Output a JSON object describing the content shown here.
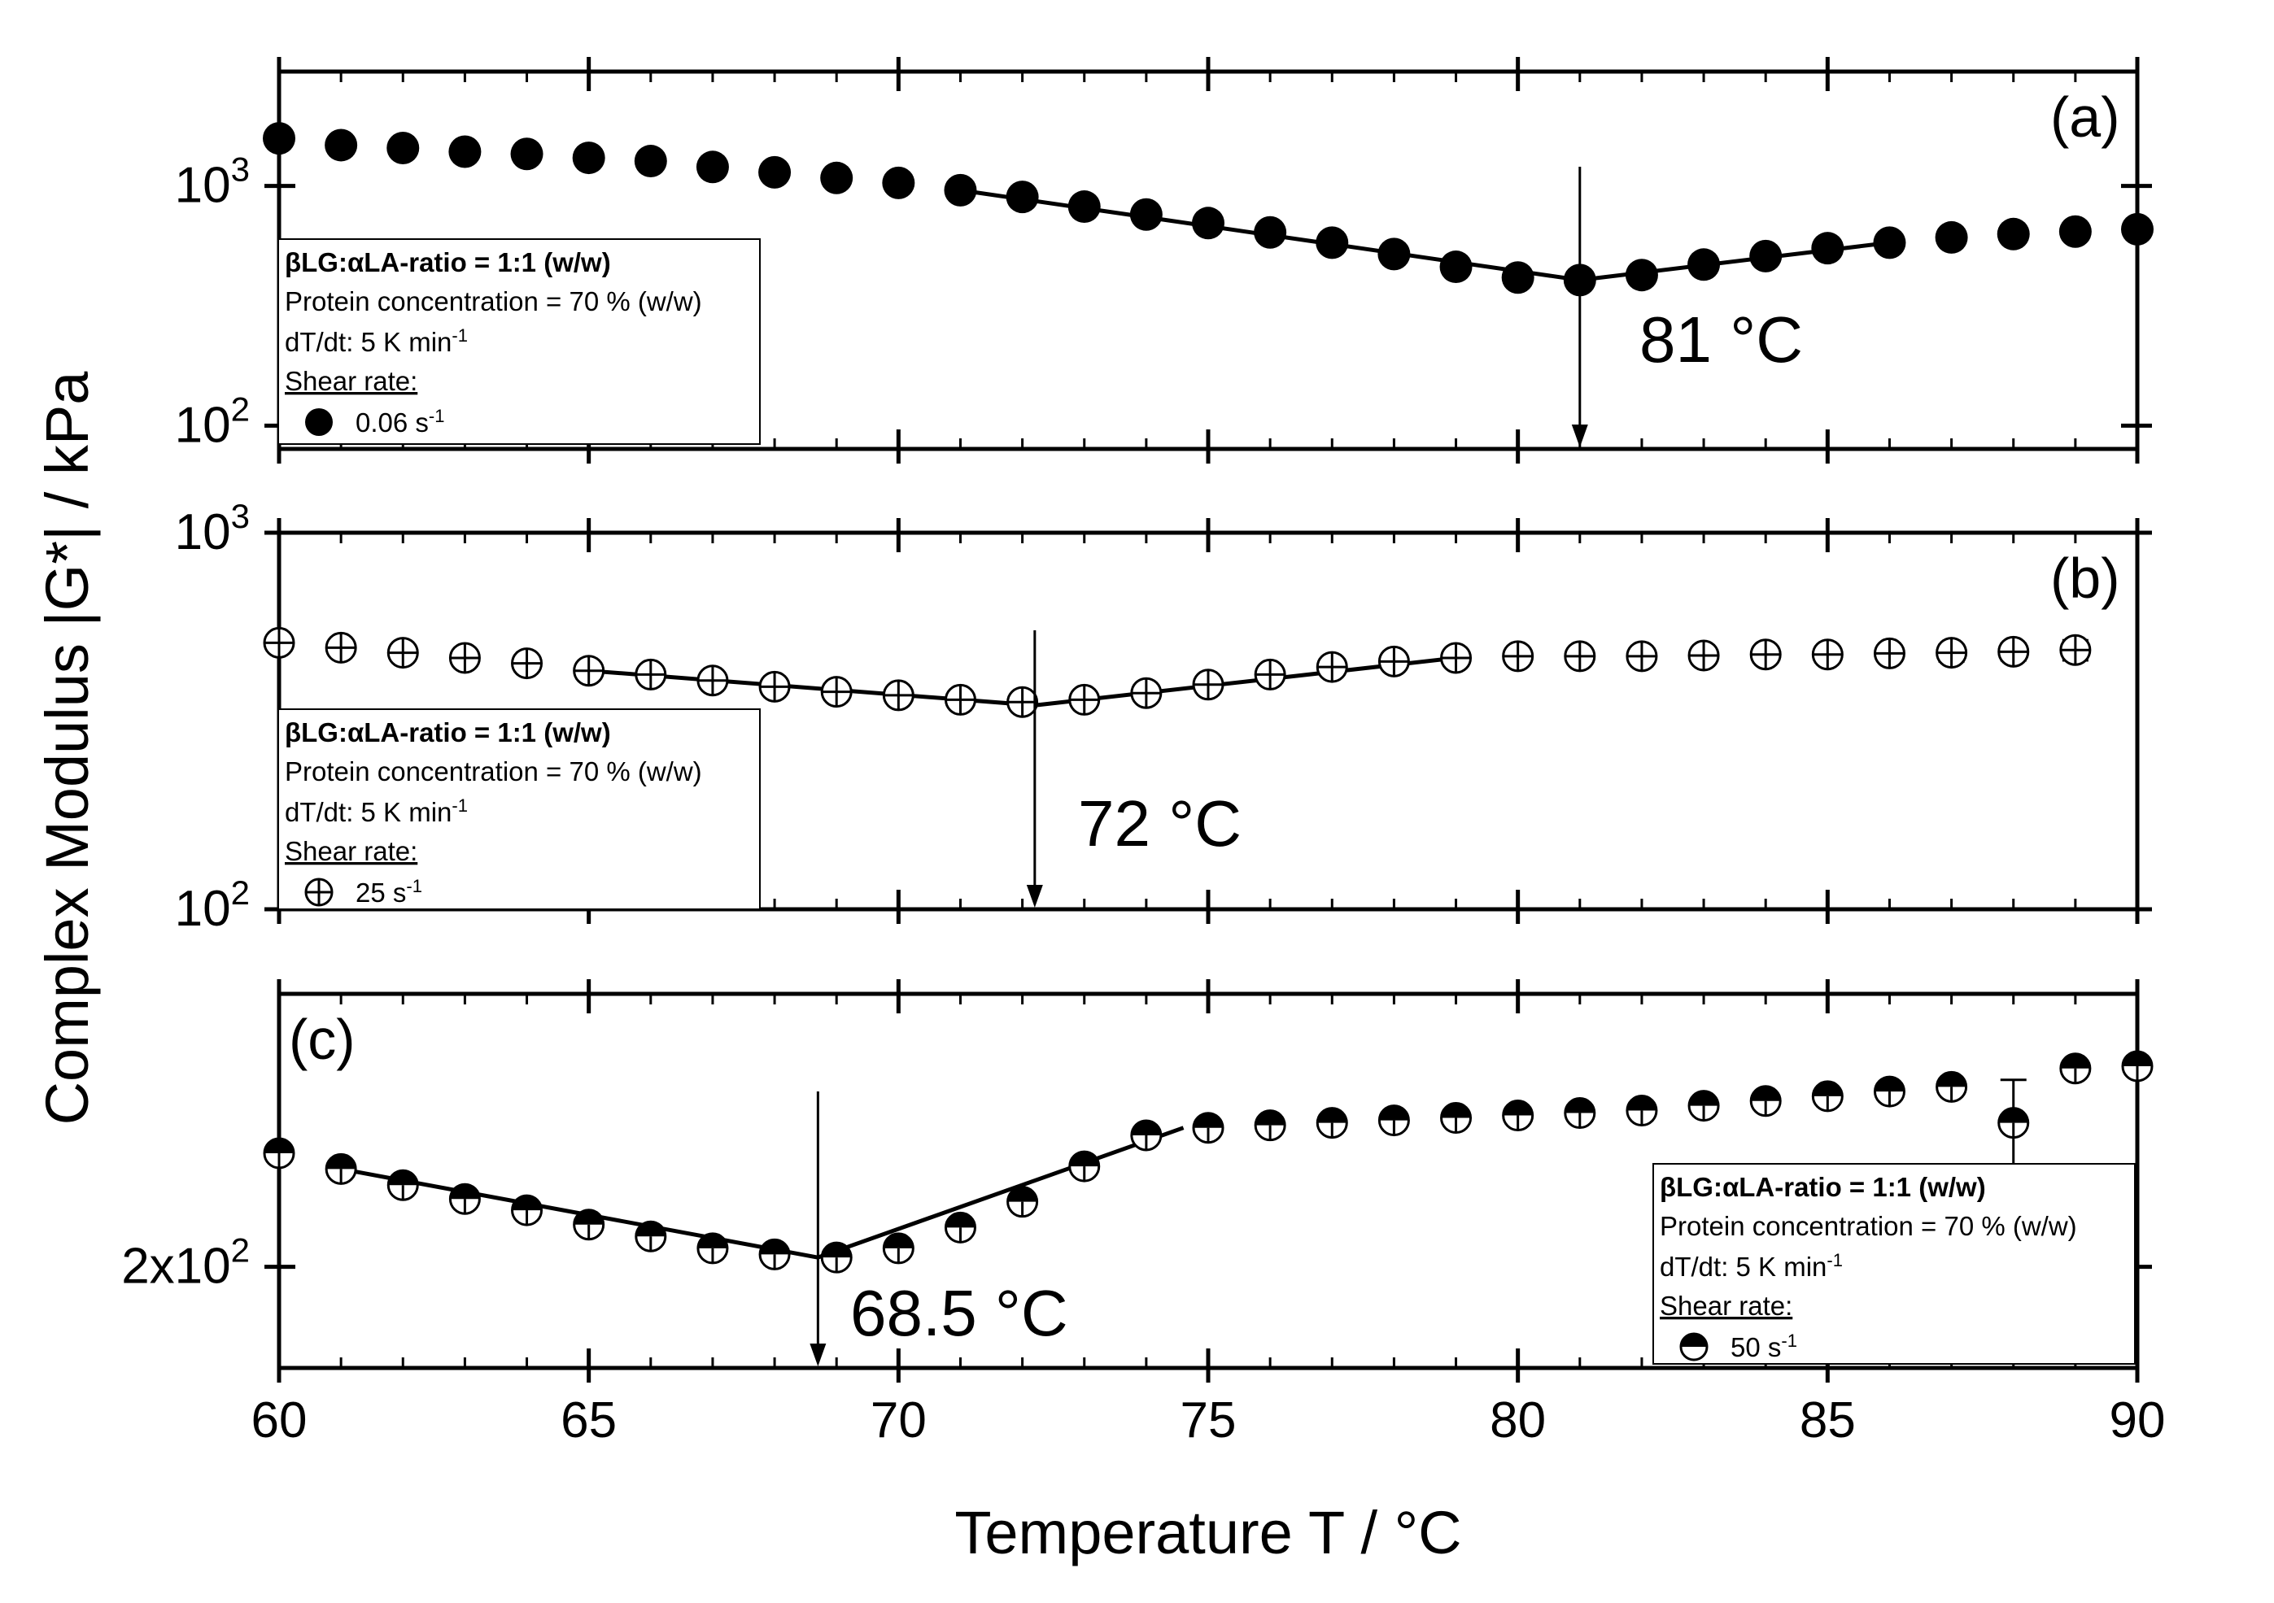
{
  "figure": {
    "xlabel": "Temperature T / °C",
    "ylabel": "Complex Modulus |G*| / kPa"
  },
  "chart_data": [
    {
      "type": "scatter",
      "panel_label": "(a)",
      "yscale": "log",
      "xlim": [
        60,
        90
      ],
      "ylim": [
        80,
        3000
      ],
      "x_ticks": [
        "60",
        "65",
        "70",
        "75",
        "80",
        "85",
        "90"
      ],
      "y_ticks": [
        {
          "value": 1000,
          "base": "10",
          "exp": "3"
        },
        {
          "value": 100,
          "base": "10",
          "exp": "2"
        }
      ],
      "series": [
        {
          "name": "0.06 s-1",
          "marker": "filled-circle",
          "x": [
            60,
            61,
            62,
            63,
            64,
            65,
            66,
            67,
            68,
            69,
            70,
            71,
            72,
            73,
            74,
            75,
            76,
            77,
            78,
            79,
            80,
            81,
            82,
            83,
            84,
            85,
            86,
            87,
            88,
            89,
            90
          ],
          "y": [
            1580,
            1480,
            1440,
            1390,
            1360,
            1310,
            1270,
            1200,
            1140,
            1080,
            1030,
            960,
            900,
            820,
            760,
            700,
            640,
            580,
            520,
            460,
            415,
            405,
            425,
            470,
            510,
            550,
            580,
            610,
            630,
            645,
            660
          ]
        }
      ],
      "fit_lines": [
        [
          [
            71,
            960
          ],
          [
            81,
            405
          ]
        ],
        [
          [
            81,
            405
          ],
          [
            86,
            580
          ]
        ]
      ],
      "annotation": {
        "text": "81 °C",
        "x": 81
      },
      "legend": {
        "title": "βLG:αLA-ratio = 1:1 (w/w)",
        "line2": "Protein concentration = 70 % (w/w)",
        "line3_pre": "dT/dt: 5 K min",
        "line3_sup": "-1",
        "heading": "Shear rate:",
        "entry_pre": "0.06 s",
        "entry_sup": "-1"
      }
    },
    {
      "type": "scatter",
      "panel_label": "(b)",
      "yscale": "log",
      "xlim": [
        60,
        90
      ],
      "ylim": [
        100,
        1000
      ],
      "x_ticks": [
        "60",
        "65",
        "70",
        "75",
        "80",
        "85",
        "90"
      ],
      "y_ticks": [
        {
          "value": 1000,
          "base": "10",
          "exp": "3"
        },
        {
          "value": 100,
          "base": "10",
          "exp": "2"
        }
      ],
      "series": [
        {
          "name": "25 s-1",
          "marker": "open-circle-cross",
          "x": [
            60,
            61,
            62,
            63,
            64,
            65,
            66,
            67,
            68,
            69,
            70,
            71,
            72,
            73,
            74,
            75,
            76,
            77,
            78,
            79,
            80,
            81,
            82,
            83,
            84,
            85,
            86,
            87,
            88,
            89
          ],
          "y": [
            510,
            495,
            480,
            465,
            450,
            430,
            420,
            405,
            390,
            378,
            370,
            360,
            355,
            360,
            375,
            395,
            420,
            440,
            455,
            465,
            470,
            470,
            470,
            472,
            475,
            475,
            478,
            480,
            483,
            488
          ],
          "err": [
            0,
            0,
            0,
            0,
            0,
            0,
            0,
            0,
            0,
            0,
            0,
            0,
            0,
            0,
            0,
            0,
            0,
            0,
            15,
            15,
            12,
            15,
            12,
            15,
            15,
            20,
            22,
            25,
            25,
            30
          ]
        }
      ],
      "fit_lines": [
        [
          [
            65,
            430
          ],
          [
            72.2,
            348
          ]
        ],
        [
          [
            72.2,
            348
          ],
          [
            79,
            465
          ]
        ]
      ],
      "annotation": {
        "text": "72 °C",
        "x": 72.2
      },
      "legend": {
        "title": "βLG:αLA-ratio = 1:1 (w/w)",
        "line2": "Protein concentration = 70 % (w/w)",
        "line3_pre": "dT/dt: 5 K min",
        "line3_sup": "-1",
        "heading": "Shear rate:",
        "entry_pre": "25 s",
        "entry_sup": "-1"
      }
    },
    {
      "type": "scatter",
      "panel_label": "(c)",
      "yscale": "log",
      "xlim": [
        60,
        90
      ],
      "ylim": [
        170,
        310
      ],
      "x_ticks": [
        "60",
        "65",
        "70",
        "75",
        "80",
        "85",
        "90"
      ],
      "y_ticks": [
        {
          "value": 200,
          "base": "2x10",
          "exp": "2"
        }
      ],
      "series": [
        {
          "name": "50 s-1",
          "marker": "half-filled-circle",
          "x": [
            60,
            61,
            62,
            63,
            64,
            65,
            66,
            67,
            68,
            69,
            70,
            71,
            72,
            73,
            74,
            75,
            76,
            77,
            78,
            79,
            80,
            81,
            82,
            83,
            84,
            85,
            86,
            87,
            88,
            89,
            90
          ],
          "y": [
            240,
            234,
            228,
            223,
            219,
            214,
            210,
            206,
            204,
            203,
            206,
            213,
            222,
            235,
            247,
            250,
            251,
            252,
            253,
            254,
            255,
            256,
            257,
            259,
            261,
            263,
            265,
            267,
            252,
            275,
            276
          ],
          "err": [
            0,
            0,
            0,
            0,
            0,
            0,
            0,
            0,
            0,
            0,
            0,
            0,
            0,
            0,
            0,
            0,
            0,
            0,
            0,
            0,
            0,
            0,
            0,
            0,
            0,
            0,
            0,
            0,
            18,
            0,
            0
          ]
        }
      ],
      "fit_lines": [
        [
          [
            61,
            234
          ],
          [
            68.7,
            203
          ]
        ],
        [
          [
            68.7,
            203
          ],
          [
            74.6,
            250
          ]
        ]
      ],
      "annotation": {
        "text": "68.5 °C",
        "x": 68.7
      },
      "legend": {
        "title": "βLG:αLA-ratio = 1:1 (w/w)",
        "line2": "Protein concentration = 70 % (w/w)",
        "line3_pre": "dT/dt: 5 K min",
        "line3_sup": "-1",
        "heading": "Shear rate:",
        "entry_pre": "50 s",
        "entry_sup": "-1"
      }
    }
  ]
}
